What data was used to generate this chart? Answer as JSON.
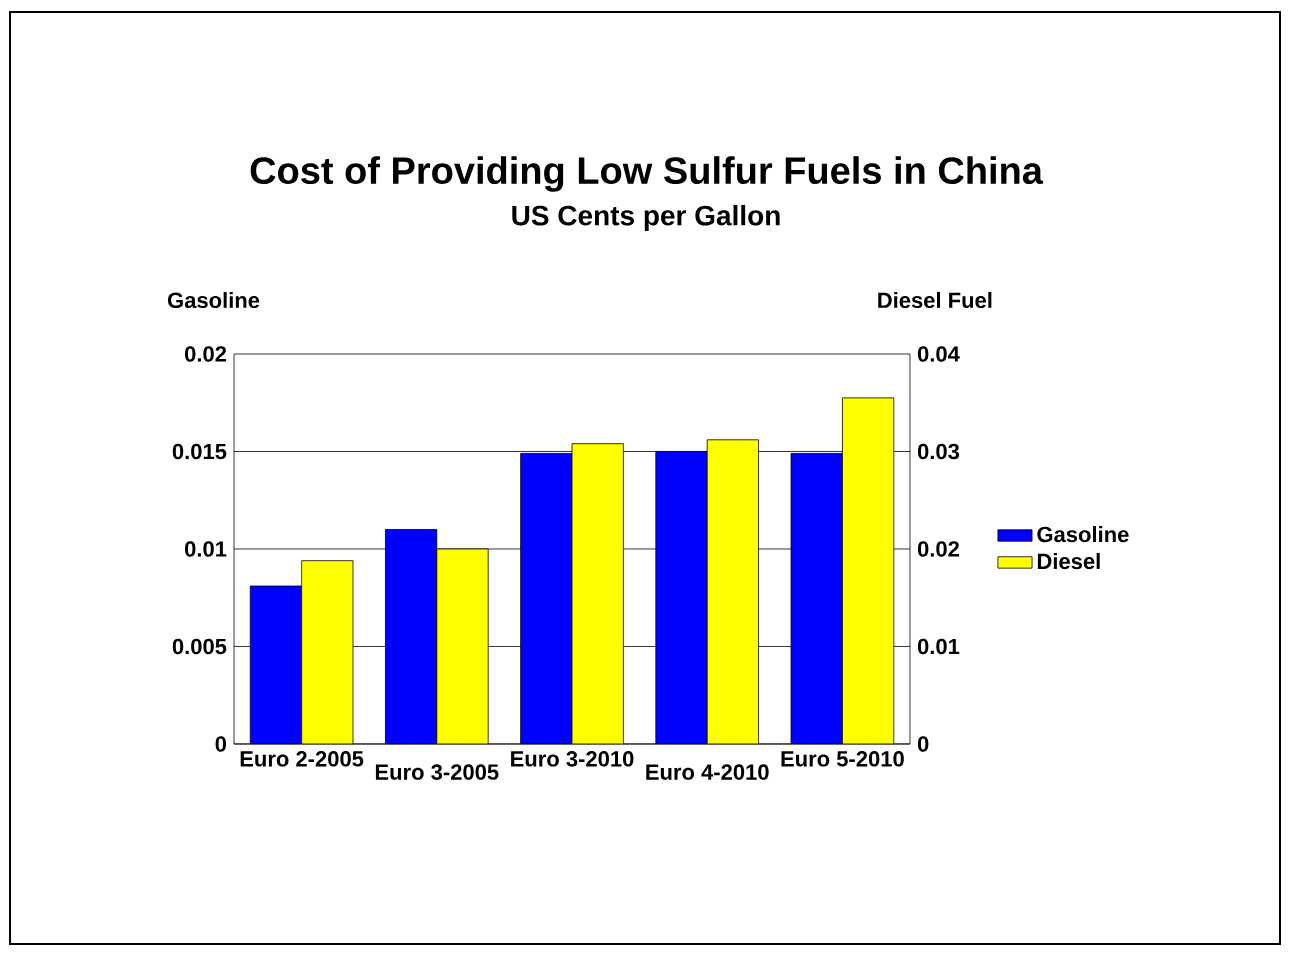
{
  "chart_data": {
    "type": "bar",
    "title": "Cost of Providing Low Sulfur Fuels in China",
    "subtitle": "US Cents per Gallon",
    "ylabel": "Gasoline",
    "y2label": "Diesel Fuel",
    "categories": [
      "Euro 2-2005",
      "Euro 3-2005",
      "Euro 3-2010",
      "Euro 4-2010",
      "Euro 5-2010"
    ],
    "series": [
      {
        "name": "Gasoline",
        "color": "#0000ff",
        "values": [
          0.0081,
          0.011,
          0.0149,
          0.015,
          0.0149
        ]
      },
      {
        "name": "Diesel",
        "color": "#ffff00",
        "axis": "y2",
        "values": [
          0.0188,
          0.02,
          0.0308,
          0.0312,
          0.0355
        ]
      }
    ],
    "ylim": [
      0,
      0.02
    ],
    "yticks": [
      0,
      0.005,
      0.01,
      0.015,
      0.02
    ],
    "y2lim": [
      0,
      0.04
    ],
    "y2ticks": [
      0,
      0.01,
      0.02,
      0.03,
      0.04
    ],
    "grid": "y",
    "legend": "right"
  }
}
